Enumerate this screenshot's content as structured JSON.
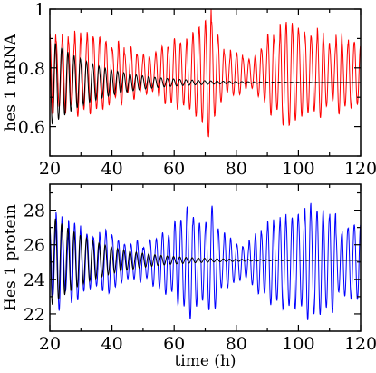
{
  "chart_data": [
    {
      "type": "line",
      "title": "",
      "xlabel": "",
      "ylabel": "hes 1 mRNA",
      "xlim": [
        20,
        120
      ],
      "ylim": [
        0.5,
        1.0
      ],
      "xticks": [
        20,
        40,
        60,
        80,
        100,
        120
      ],
      "xtick_labels": [
        "20",
        "40",
        "60",
        "80",
        "100",
        "120"
      ],
      "yticks": [
        0.6,
        0.8,
        1.0
      ],
      "ytick_labels": [
        "0.6",
        "0.8",
        "1"
      ],
      "grid": false,
      "series": [
        {
          "color": "#ff0000",
          "style": "stochastic-oscillation",
          "period_h": 2.0,
          "mean": 0.78,
          "amplitude_envelope": {
            "x": [
              20,
              30,
              40,
              50,
              55,
              60,
              65,
              70,
              72,
              75,
              80,
              85,
              90,
              95,
              100,
              105,
              110,
              115,
              120
            ],
            "y": [
              0.14,
              0.14,
              0.1,
              0.06,
              0.08,
              0.13,
              0.14,
              0.16,
              0.22,
              0.1,
              0.06,
              0.05,
              0.12,
              0.15,
              0.14,
              0.15,
              0.12,
              0.14,
              0.09
            ]
          }
        },
        {
          "color": "#000000",
          "style": "damped-oscillation",
          "period_h": 2.0,
          "mean": 0.75,
          "amplitude_start": 0.15,
          "decay_time_h": 16,
          "x_range": [
            20,
            120
          ]
        }
      ]
    },
    {
      "type": "line",
      "title": "",
      "xlabel": "time (h)",
      "ylabel": "Hes 1 protein",
      "xlim": [
        20,
        120
      ],
      "ylim": [
        21,
        29.5
      ],
      "xticks": [
        20,
        40,
        60,
        80,
        100,
        120
      ],
      "xtick_labels": [
        "20",
        "40",
        "60",
        "80",
        "100",
        "120"
      ],
      "yticks": [
        22,
        24,
        26,
        28
      ],
      "ytick_labels": [
        "22",
        "24",
        "26",
        "28"
      ],
      "grid": false,
      "series": [
        {
          "color": "#0000ff",
          "style": "stochastic-oscillation",
          "period_h": 2.0,
          "mean": 25.0,
          "amplitude_envelope": {
            "x": [
              20,
              30,
              40,
              50,
              55,
              60,
              65,
              70,
              72,
              75,
              80,
              85,
              90,
              95,
              100,
              105,
              110,
              115,
              120
            ],
            "y": [
              2.5,
              2.0,
              1.5,
              1.0,
              1.5,
              2.4,
              3.0,
              2.8,
              4.0,
              2.0,
              1.0,
              1.2,
              2.0,
              2.4,
              2.6,
              2.8,
              2.6,
              2.0,
              2.0
            ]
          }
        },
        {
          "color": "#000000",
          "style": "damped-oscillation",
          "period_h": 2.0,
          "mean": 25.1,
          "amplitude_start": 2.7,
          "decay_time_h": 16,
          "x_range": [
            20,
            120
          ]
        }
      ]
    }
  ]
}
